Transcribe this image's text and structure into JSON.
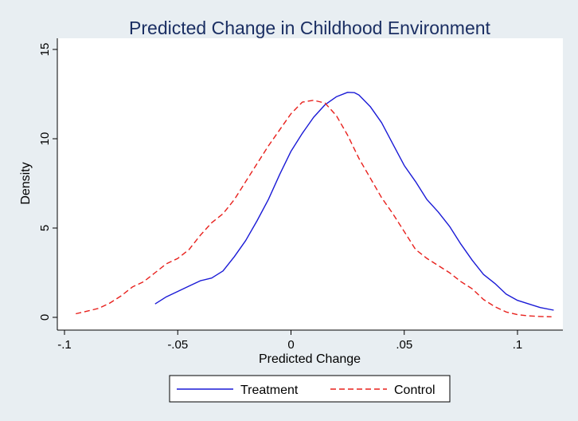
{
  "chart_data": {
    "type": "line",
    "title": "Predicted Change in Childhood Environment",
    "xlabel": "Predicted Change",
    "ylabel": "Density",
    "xlim": [
      -0.1,
      0.12
    ],
    "ylim": [
      0,
      15
    ],
    "xticks": [
      -0.1,
      -0.05,
      0,
      0.05,
      0.1
    ],
    "xtick_labels": [
      "-.1",
      "-.05",
      "0",
      ".05",
      ".1"
    ],
    "yticks": [
      0,
      5,
      10,
      15
    ],
    "ytick_labels": [
      "0",
      "5",
      "10",
      "15"
    ],
    "grid": false,
    "legend_position": "bottom",
    "series": [
      {
        "name": "Treatment",
        "color": "#1a1ad6",
        "dash": "solid",
        "x": [
          -0.06,
          -0.055,
          -0.05,
          -0.045,
          -0.04,
          -0.035,
          -0.03,
          -0.025,
          -0.02,
          -0.015,
          -0.01,
          -0.005,
          0,
          0.005,
          0.01,
          0.015,
          0.02,
          0.025,
          0.028,
          0.03,
          0.035,
          0.04,
          0.045,
          0.05,
          0.055,
          0.06,
          0.065,
          0.07,
          0.075,
          0.08,
          0.085,
          0.09,
          0.095,
          0.1,
          0.105,
          0.11,
          0.116
        ],
        "y": [
          0.75,
          1.15,
          1.45,
          1.75,
          2.05,
          2.2,
          2.6,
          3.4,
          4.3,
          5.4,
          6.6,
          8.0,
          9.3,
          10.3,
          11.2,
          11.9,
          12.35,
          12.6,
          12.58,
          12.45,
          11.8,
          10.9,
          9.7,
          8.5,
          7.6,
          6.6,
          5.9,
          5.1,
          4.1,
          3.2,
          2.4,
          1.9,
          1.3,
          0.95,
          0.75,
          0.55,
          0.4
        ]
      },
      {
        "name": "Control",
        "color": "#e8201c",
        "dash": "dashed",
        "x": [
          -0.095,
          -0.09,
          -0.085,
          -0.08,
          -0.075,
          -0.07,
          -0.065,
          -0.06,
          -0.055,
          -0.05,
          -0.045,
          -0.04,
          -0.035,
          -0.03,
          -0.025,
          -0.02,
          -0.015,
          -0.01,
          -0.005,
          0,
          0.005,
          0.01,
          0.015,
          0.02,
          0.025,
          0.03,
          0.035,
          0.04,
          0.045,
          0.05,
          0.055,
          0.06,
          0.065,
          0.07,
          0.075,
          0.08,
          0.085,
          0.09,
          0.095,
          0.1,
          0.105,
          0.11,
          0.115
        ],
        "y": [
          0.2,
          0.35,
          0.5,
          0.8,
          1.2,
          1.7,
          2.0,
          2.5,
          3.0,
          3.3,
          3.8,
          4.6,
          5.3,
          5.8,
          6.6,
          7.6,
          8.6,
          9.6,
          10.5,
          11.4,
          12.05,
          12.15,
          12.0,
          11.3,
          10.2,
          8.9,
          7.8,
          6.7,
          5.8,
          4.8,
          3.8,
          3.3,
          2.9,
          2.5,
          2.0,
          1.6,
          1.0,
          0.6,
          0.3,
          0.15,
          0.08,
          0.05,
          0.03
        ]
      }
    ]
  }
}
